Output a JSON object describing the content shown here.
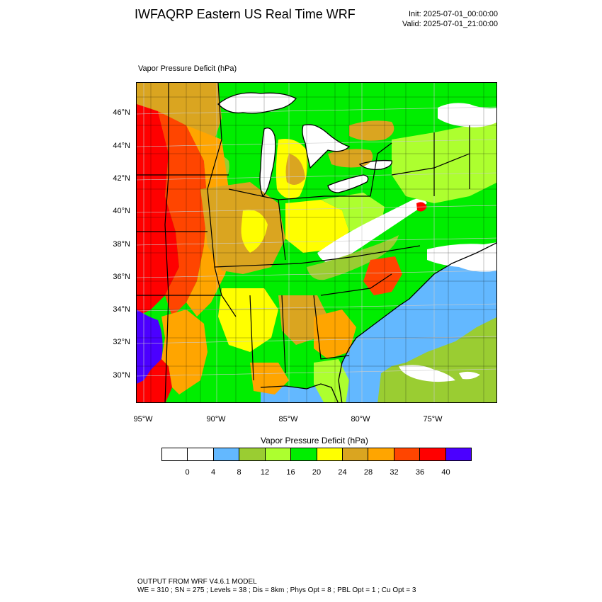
{
  "header": {
    "title": "IWFAQRP Eastern US Real Time WRF",
    "init": "Init: 2025-07-01_00:00:00",
    "valid": "Valid: 2025-07-01_21:00:00"
  },
  "plot": {
    "title": "Vapor Pressure Deficit   (hPa)"
  },
  "map": {
    "lat_labels": [
      "46°N",
      "44°N",
      "42°N",
      "40°N",
      "38°N",
      "36°N",
      "34°N",
      "32°N",
      "30°N"
    ],
    "lon_labels": [
      "95°W",
      "90°W",
      "85°W",
      "80°W",
      "75°W"
    ]
  },
  "colorbar": {
    "title": "Vapor Pressure Deficit  (hPa)",
    "colors": [
      "#ffffff",
      "#ffffff",
      "#63b8ff",
      "#9acd32",
      "#adff2f",
      "#00ee00",
      "#ffff00",
      "#daa520",
      "#ffa500",
      "#ff4500",
      "#ff0000",
      "#4b00ff"
    ],
    "labels": [
      "0",
      "4",
      "8",
      "12",
      "16",
      "20",
      "24",
      "28",
      "32",
      "36",
      "40"
    ]
  },
  "footer": {
    "line1": "OUTPUT FROM WRF V4.6.1 MODEL",
    "line2": "WE = 310 ; SN = 275 ; Levels = 38 ; Dis = 8km ; Phys Opt = 8 ; PBL Opt = 1 ; Cu Opt = 3"
  }
}
